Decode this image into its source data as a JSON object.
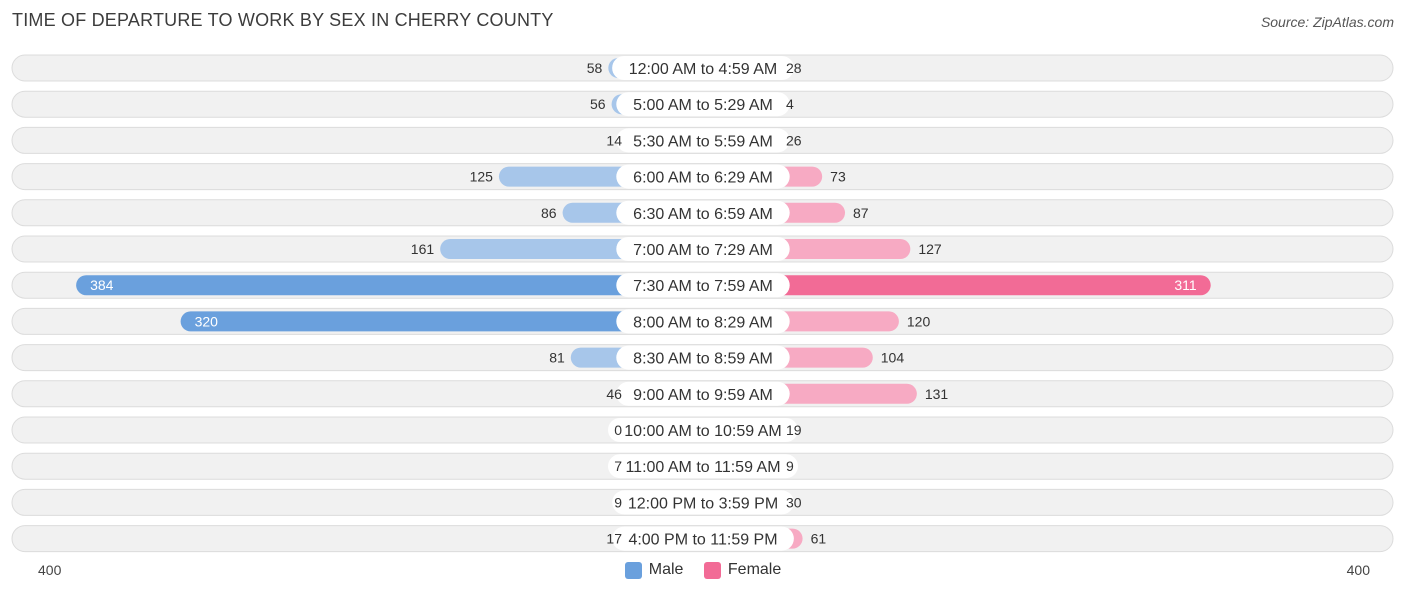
{
  "header": {
    "title": "TIME OF DEPARTURE TO WORK BY SEX IN CHERRY COUNTY",
    "source": "Source: ZipAtlas.com"
  },
  "chart_data": {
    "type": "bar",
    "orientation": "horizontal-diverging",
    "title": "TIME OF DEPARTURE TO WORK BY SEX IN CHERRY COUNTY",
    "categories": [
      "12:00 AM to 4:59 AM",
      "5:00 AM to 5:29 AM",
      "5:30 AM to 5:59 AM",
      "6:00 AM to 6:29 AM",
      "6:30 AM to 6:59 AM",
      "7:00 AM to 7:29 AM",
      "7:30 AM to 7:59 AM",
      "8:00 AM to 8:29 AM",
      "8:30 AM to 8:59 AM",
      "9:00 AM to 9:59 AM",
      "10:00 AM to 10:59 AM",
      "11:00 AM to 11:59 AM",
      "12:00 PM to 3:59 PM",
      "4:00 PM to 11:59 PM"
    ],
    "series": [
      {
        "name": "Male",
        "values": [
          58,
          56,
          14,
          125,
          86,
          161,
          384,
          320,
          81,
          46,
          0,
          7,
          9,
          17
        ]
      },
      {
        "name": "Female",
        "values": [
          28,
          4,
          26,
          73,
          87,
          127,
          311,
          120,
          104,
          131,
          19,
          9,
          30,
          61
        ]
      }
    ],
    "xlim": [
      -400,
      400
    ],
    "axis_min_label": "400",
    "axis_max_label": "400",
    "legend_placement": "bottom-center"
  },
  "legend": {
    "male_label": "Male",
    "female_label": "Female"
  },
  "colors": {
    "male_light": "#a7c6ea",
    "male_strong": "#6aa0dd",
    "female_light": "#f7aac3",
    "female_strong": "#f26b96"
  }
}
